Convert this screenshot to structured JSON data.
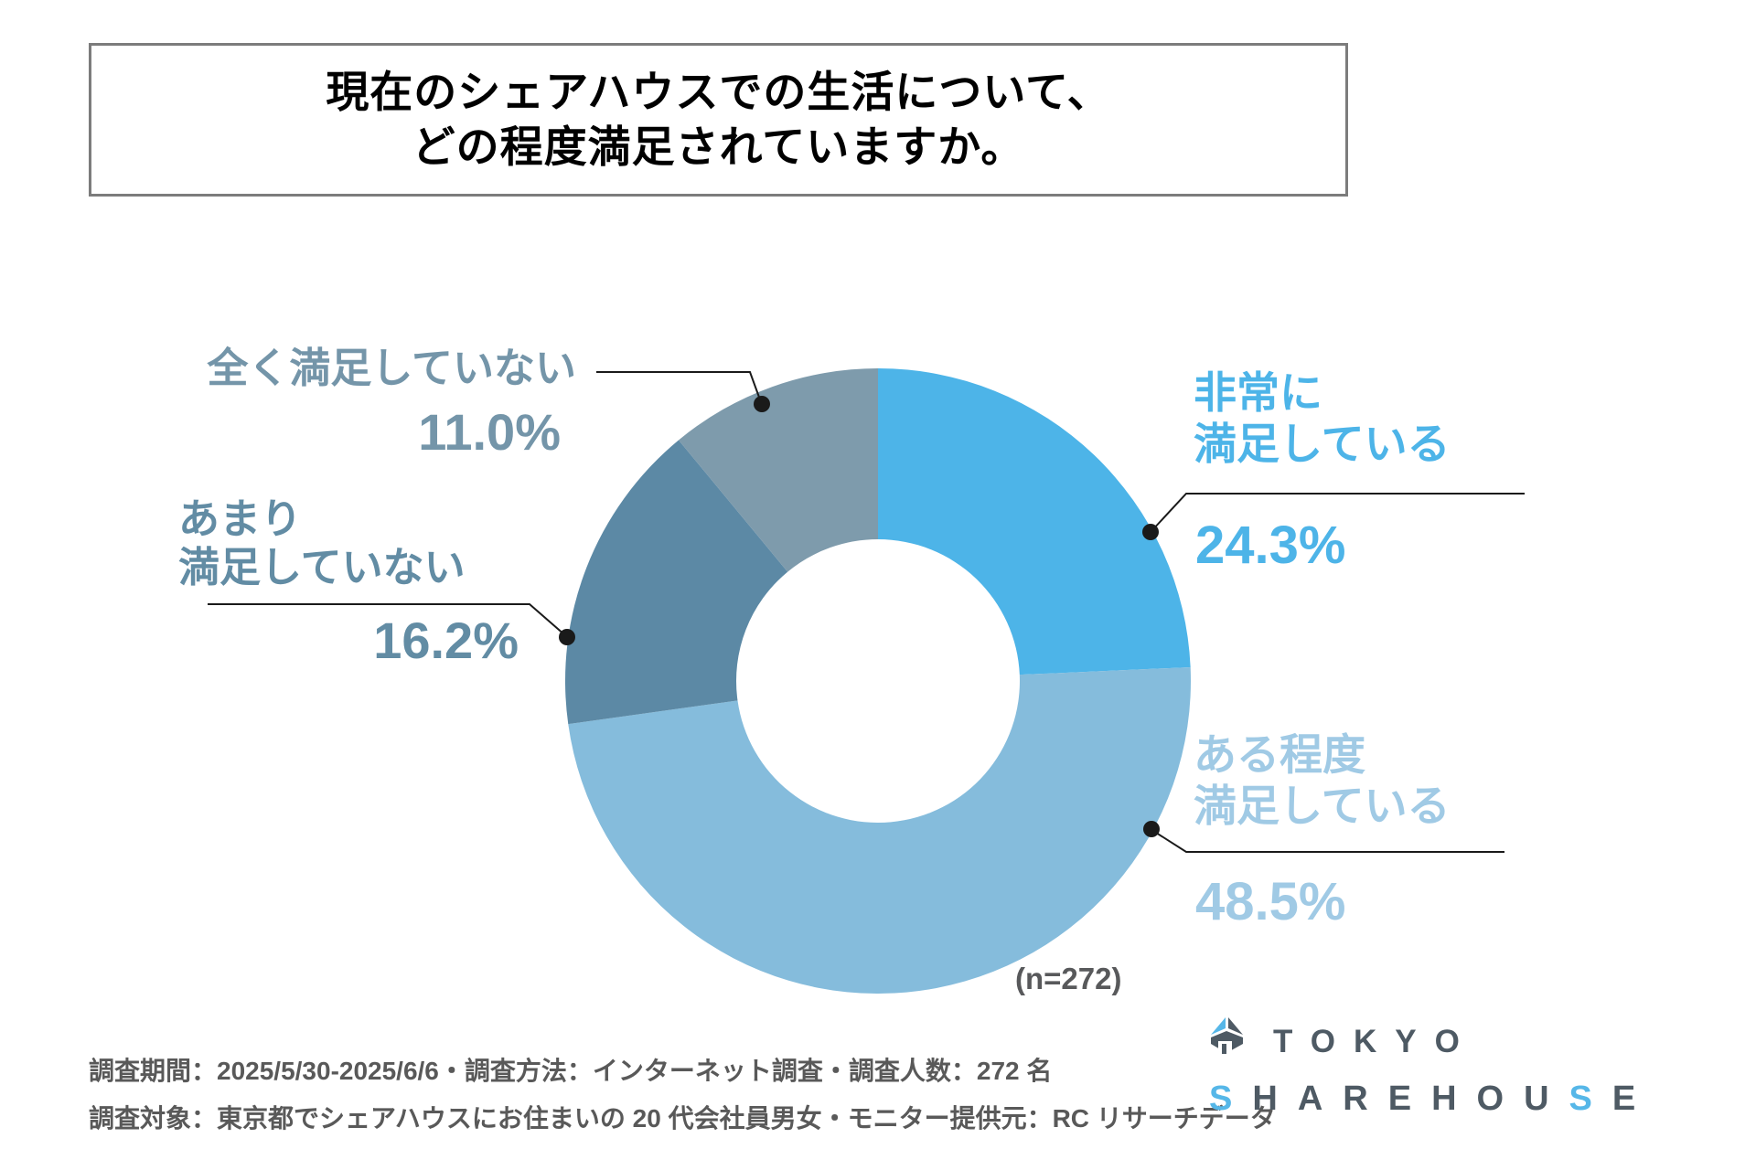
{
  "title": {
    "line1": "現在のシェアハウスでの生活について、",
    "line2": "どの程度満足されていますか。"
  },
  "chart_data": {
    "type": "pie",
    "subtype": "donut",
    "title": "現在のシェアハウスでの生活について、どの程度満足されていますか。",
    "sample_note": "(n=272)",
    "start_angle_deg": 0,
    "direction": "clockwise",
    "segments": [
      {
        "label": "非常に満足している",
        "label_lines": [
          "非常に",
          "満足している"
        ],
        "value": 24.3,
        "pct_label": "24.3%",
        "color": "#4db4e8",
        "label_color": "#4db4e8"
      },
      {
        "label": "ある程度満足している",
        "label_lines": [
          "ある程度",
          "満足している"
        ],
        "value": 48.5,
        "pct_label": "48.5%",
        "color": "#85bcdc",
        "label_color": "#a0cae5"
      },
      {
        "label": "あまり満足していない",
        "label_lines": [
          "あまり",
          "満足していない"
        ],
        "value": 16.2,
        "pct_label": "16.2%",
        "color": "#5c89a5",
        "label_color": "#628ca4"
      },
      {
        "label": "全く満足していない",
        "label_lines": [
          "全く満足していない"
        ],
        "value": 11.0,
        "pct_label": "11.0%",
        "color": "#7e9bac",
        "label_color": "#7495a9"
      }
    ]
  },
  "footer": {
    "line1": "調査期間：2025/5/30-2025/6/6・調査方法：インターネット調査・調査人数：272 名",
    "line2": "調査対象：東京都でシェアハウスにお住まいの 20 代会社員男女・モニター提供元：RC リサーチデータ"
  },
  "logo": {
    "line1": "TOKYO",
    "line2": "SHAREHOUSE",
    "blue_letter_indices": [
      0,
      8
    ],
    "dark_color": "#4e5a64",
    "blue_color": "#56b7e8"
  },
  "colors": {
    "title_text": "#000000",
    "box_border": "#7c7c7c",
    "footer_text": "#595959",
    "leader_line": "#1a1a1a",
    "background": "#ffffff"
  }
}
